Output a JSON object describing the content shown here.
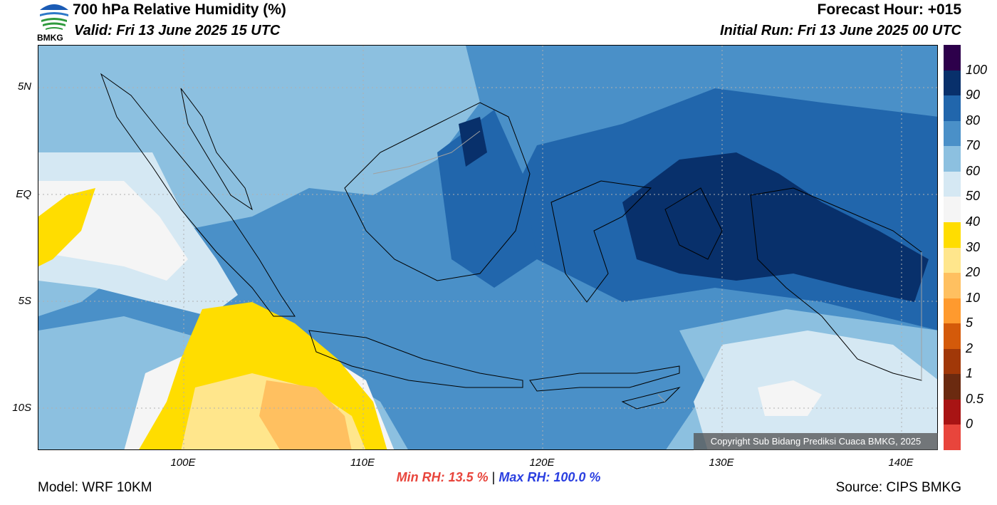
{
  "header": {
    "title": "700 hPa Relative Humidity (%)",
    "valid": "Valid: Fri 13 June 2025 15 UTC",
    "forecast_hour": "Forecast Hour: +015",
    "initial_run": "Initial Run: Fri 13 June 2025 00 UTC",
    "logo_text": "BMKG"
  },
  "map": {
    "lat_labels": [
      "5N",
      "EQ",
      "5S",
      "10S"
    ],
    "lon_labels": [
      "100E",
      "110E",
      "120E",
      "130E",
      "140E"
    ],
    "copyright": "Copyright Sub Bidang Prediksi Cuaca BMKG, 2025",
    "colors": {
      "ocean_70_80": "#4a90c8",
      "rh_80_90": "#2166ac",
      "rh_90_100": "#08306b",
      "rh_60_70": "#8cc0e0",
      "rh_50_60": "#d5e8f3",
      "rh_40_50": "#f5f5f5",
      "rh_30_40": "#ffdd00",
      "rh_20_30": "#ffe68c",
      "rh_10_20": "#ffc060",
      "coastline": "#000000",
      "border": "#a0a0a0"
    }
  },
  "colorbar": {
    "labels": [
      "100",
      "90",
      "80",
      "70",
      "60",
      "50",
      "40",
      "30",
      "20",
      "10",
      "5",
      "2",
      "1",
      "0.5",
      "0"
    ],
    "colors": [
      "#2d004b",
      "#08306b",
      "#2166ac",
      "#4a90c8",
      "#8cc0e0",
      "#d5e8f3",
      "#f5f5f5",
      "#ffdd00",
      "#ffe68c",
      "#ffc060",
      "#ff9a2e",
      "#d45a0a",
      "#a13808",
      "#6b2a10",
      "#a81414",
      "#e8453c"
    ]
  },
  "stats": {
    "min_rh": "Min RH:  13.5 %",
    "separator": "|",
    "max_rh": "Max RH: 100.0 %"
  },
  "footer": {
    "model": "Model: WRF 10KM",
    "source": "Source: CIPS BMKG"
  }
}
